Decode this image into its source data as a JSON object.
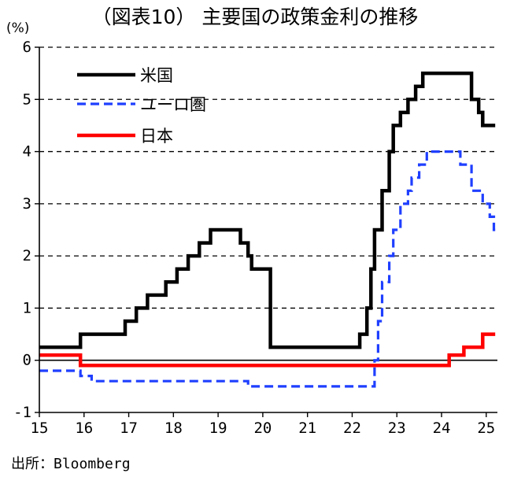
{
  "title": "（図表10） 主要国の政策金利の推移",
  "unit_label": "(%)",
  "source": "出所：Bloomberg",
  "chart_data": {
    "type": "line",
    "title": "（図表10） 主要国の政策金利の推移",
    "ylabel": "(%)",
    "xlabel": "",
    "ylim": [
      -1,
      6
    ],
    "xlim": [
      15,
      25.25
    ],
    "yticks": [
      "6",
      "5",
      "4",
      "3",
      "2",
      "1",
      "0",
      "-1"
    ],
    "yticks_values": [
      6,
      5,
      4,
      3,
      2,
      1,
      0,
      -1
    ],
    "xticks": [
      "15",
      "16",
      "17",
      "18",
      "19",
      "20",
      "21",
      "22",
      "23",
      "24",
      "25"
    ],
    "xticks_values": [
      15,
      16,
      17,
      18,
      19,
      20,
      21,
      22,
      23,
      24,
      25
    ],
    "grid": "horizontal dashed at each integer",
    "legend_position": "top-left",
    "series": [
      {
        "name": "米国",
        "color": "#000000",
        "style": "solid",
        "points": [
          [
            15.0,
            0.25
          ],
          [
            15.92,
            0.25
          ],
          [
            15.92,
            0.5
          ],
          [
            16.92,
            0.5
          ],
          [
            16.92,
            0.75
          ],
          [
            17.17,
            0.75
          ],
          [
            17.17,
            1.0
          ],
          [
            17.42,
            1.0
          ],
          [
            17.42,
            1.25
          ],
          [
            17.83,
            1.25
          ],
          [
            17.83,
            1.5
          ],
          [
            18.08,
            1.5
          ],
          [
            18.08,
            1.75
          ],
          [
            18.33,
            1.75
          ],
          [
            18.33,
            2.0
          ],
          [
            18.58,
            2.0
          ],
          [
            18.58,
            2.25
          ],
          [
            18.83,
            2.25
          ],
          [
            18.83,
            2.5
          ],
          [
            19.5,
            2.5
          ],
          [
            19.5,
            2.25
          ],
          [
            19.67,
            2.25
          ],
          [
            19.67,
            2.0
          ],
          [
            19.75,
            2.0
          ],
          [
            19.75,
            1.75
          ],
          [
            20.17,
            1.75
          ],
          [
            20.17,
            0.25
          ],
          [
            22.17,
            0.25
          ],
          [
            22.17,
            0.5
          ],
          [
            22.33,
            0.5
          ],
          [
            22.33,
            1.0
          ],
          [
            22.42,
            1.0
          ],
          [
            22.42,
            1.75
          ],
          [
            22.5,
            1.75
          ],
          [
            22.5,
            2.5
          ],
          [
            22.67,
            2.5
          ],
          [
            22.67,
            3.25
          ],
          [
            22.83,
            3.25
          ],
          [
            22.83,
            4.0
          ],
          [
            22.92,
            4.0
          ],
          [
            22.92,
            4.5
          ],
          [
            23.08,
            4.5
          ],
          [
            23.08,
            4.75
          ],
          [
            23.25,
            4.75
          ],
          [
            23.25,
            5.0
          ],
          [
            23.42,
            5.0
          ],
          [
            23.42,
            5.25
          ],
          [
            23.58,
            5.25
          ],
          [
            23.58,
            5.5
          ],
          [
            24.67,
            5.5
          ],
          [
            24.67,
            5.0
          ],
          [
            24.83,
            5.0
          ],
          [
            24.83,
            4.75
          ],
          [
            24.92,
            4.75
          ],
          [
            24.92,
            4.5
          ],
          [
            25.2,
            4.5
          ]
        ]
      },
      {
        "name": "ユーロ圏",
        "color": "#1f3fff",
        "style": "dashed",
        "points": [
          [
            15.0,
            -0.2
          ],
          [
            15.92,
            -0.2
          ],
          [
            15.92,
            -0.3
          ],
          [
            16.17,
            -0.3
          ],
          [
            16.17,
            -0.4
          ],
          [
            19.67,
            -0.4
          ],
          [
            19.67,
            -0.5
          ],
          [
            22.5,
            -0.5
          ],
          [
            22.5,
            0.0
          ],
          [
            22.58,
            0.0
          ],
          [
            22.58,
            0.75
          ],
          [
            22.67,
            0.75
          ],
          [
            22.67,
            1.5
          ],
          [
            22.83,
            1.5
          ],
          [
            22.83,
            2.0
          ],
          [
            22.92,
            2.0
          ],
          [
            22.92,
            2.5
          ],
          [
            23.08,
            2.5
          ],
          [
            23.08,
            3.0
          ],
          [
            23.25,
            3.0
          ],
          [
            23.25,
            3.25
          ],
          [
            23.33,
            3.25
          ],
          [
            23.33,
            3.5
          ],
          [
            23.5,
            3.5
          ],
          [
            23.5,
            3.75
          ],
          [
            23.67,
            3.75
          ],
          [
            23.67,
            4.0
          ],
          [
            24.42,
            4.0
          ],
          [
            24.42,
            3.75
          ],
          [
            24.67,
            3.75
          ],
          [
            24.67,
            3.25
          ],
          [
            24.92,
            3.25
          ],
          [
            24.92,
            3.0
          ],
          [
            25.08,
            3.0
          ],
          [
            25.08,
            2.75
          ],
          [
            25.17,
            2.75
          ],
          [
            25.17,
            2.5
          ],
          [
            25.2,
            2.5
          ]
        ]
      },
      {
        "name": "日本",
        "color": "#ff0000",
        "style": "solid",
        "points": [
          [
            15.0,
            0.1
          ],
          [
            15.92,
            0.1
          ],
          [
            15.92,
            -0.1
          ],
          [
            24.17,
            -0.1
          ],
          [
            24.17,
            0.1
          ],
          [
            24.5,
            0.1
          ],
          [
            24.5,
            0.25
          ],
          [
            24.92,
            0.25
          ],
          [
            24.92,
            0.5
          ],
          [
            25.2,
            0.5
          ]
        ]
      }
    ]
  }
}
